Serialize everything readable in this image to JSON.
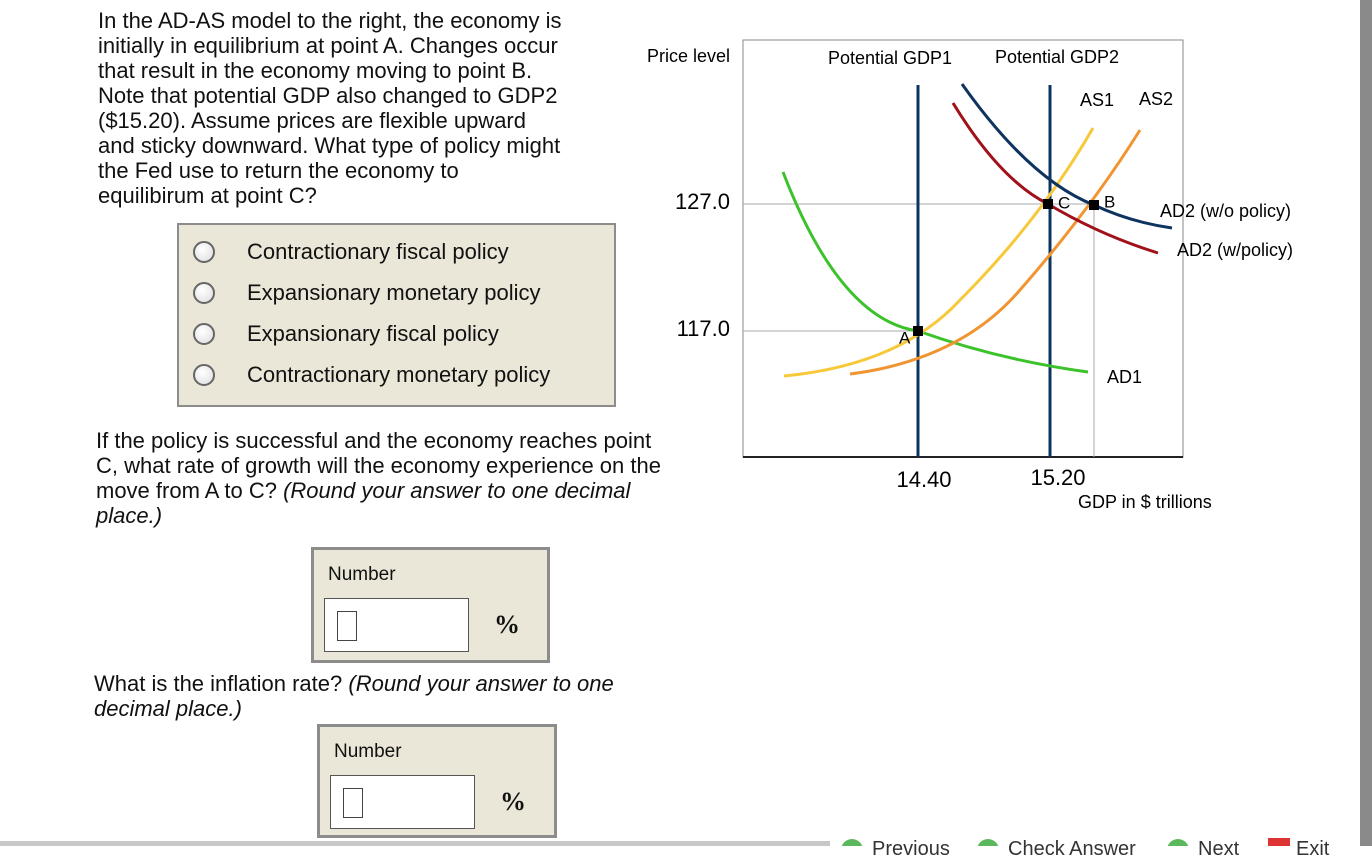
{
  "question": {
    "intro_lines": [
      "In the AD-AS model to the right, the economy is",
      "initially in equilibrium at point A. Changes occur",
      "that result in the economy moving to point B.",
      "Note that potential GDP also changed to GDP2",
      "($15.20). Assume prices are flexible upward",
      "and sticky downward. What type of policy might",
      "the Fed use to return the economy to",
      "equilibirum at point C?"
    ],
    "options": [
      "Contractionary fiscal policy",
      "Expansionary monetary policy",
      "Expansionary fiscal policy",
      "Contractionary monetary policy"
    ]
  },
  "part1": {
    "prompt": "If the policy is successful and the economy reaches point C, what rate of growth will the economy experience on the move from A to C?",
    "hint": "(Round your answer to one decimal place.)",
    "input_label": "Number",
    "unit": "%"
  },
  "part2": {
    "prompt": "What is the inflation rate?",
    "hint": "(Round your answer to one decimal place.)",
    "input_label": "Number",
    "unit": "%"
  },
  "graph": {
    "y_axis_label": "Price level",
    "x_axis_label": "GDP in $ trillions",
    "y_ticks": [
      "127.0",
      "117.0"
    ],
    "x_ticks": [
      "14.40",
      "15.20"
    ],
    "potential_labels": [
      "Potential GDP1",
      "Potential GDP2"
    ],
    "curve_labels": [
      "AS1",
      "AS2",
      "AD1",
      "AD2 (w/o policy)",
      "AD2 (w/policy)"
    ],
    "point_labels": [
      "A",
      "B",
      "C"
    ]
  },
  "footer": {
    "buttons": [
      "Previous",
      "Check Answer",
      "Next",
      "Exit"
    ]
  }
}
